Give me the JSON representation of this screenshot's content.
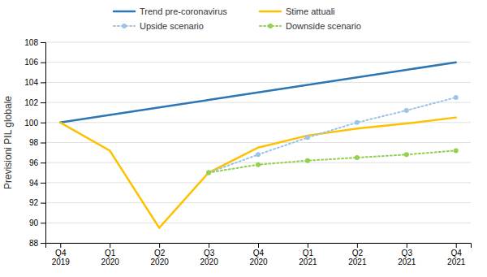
{
  "chart_data": {
    "type": "line",
    "categories": [
      "Q4\n2019",
      "Q1\n2020",
      "Q2\n2020",
      "Q3\n2020",
      "Q4\n2020",
      "Q1\n2021",
      "Q2\n2021",
      "Q3\n2021",
      "Q4\n2021"
    ],
    "series": [
      {
        "name": "Trend pre-coronavirus",
        "color": "#2E75B6",
        "line_style": "solid",
        "values": [
          100.0,
          100.75,
          101.5,
          102.25,
          103.0,
          103.75,
          104.5,
          105.25,
          106.0
        ]
      },
      {
        "name": "Stime attuali",
        "color": "#FFC000",
        "line_style": "solid",
        "values": [
          100.0,
          97.2,
          89.5,
          95.0,
          97.5,
          98.7,
          99.4,
          99.9,
          100.5
        ]
      },
      {
        "name": "Upside scenario",
        "color": "#9DC3E6",
        "line_style": "dotted",
        "marker": "circle",
        "values": [
          null,
          null,
          null,
          95.0,
          96.8,
          98.5,
          100.0,
          101.2,
          102.5
        ]
      },
      {
        "name": "Downside scenario",
        "color": "#92D050",
        "line_style": "dotted",
        "marker": "circle",
        "values": [
          null,
          null,
          null,
          95.0,
          95.8,
          96.2,
          96.5,
          96.8,
          97.2
        ]
      }
    ],
    "ylim": [
      88,
      108
    ],
    "yticks": [
      88,
      90,
      92,
      94,
      96,
      98,
      100,
      102,
      104,
      106,
      108
    ],
    "ylabel": "Previsioni PIL globale",
    "grid": true,
    "legend": "top"
  }
}
